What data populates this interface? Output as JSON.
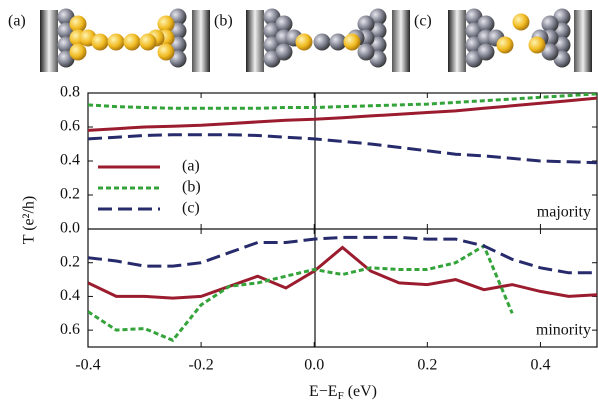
{
  "panels": [
    "(a)",
    "(b)",
    "(c)"
  ],
  "chart_data": [
    {
      "type": "line",
      "ylabel": "T (e²/h)",
      "annotation": "majority",
      "legend": "left",
      "x": [
        -0.4,
        -0.35,
        -0.3,
        -0.25,
        -0.2,
        -0.15,
        -0.1,
        -0.05,
        0,
        0.05,
        0.1,
        0.15,
        0.2,
        0.25,
        0.3,
        0.35,
        0.4,
        0.45,
        0.5
      ],
      "xlim": [
        -0.4,
        0.5
      ],
      "ylim": [
        0,
        0.8
      ],
      "yticks": [
        {
          "value": 0,
          "label": "0.0"
        },
        0.2,
        0.4,
        0.6,
        0.8
      ],
      "series": [
        {
          "name": "(a)",
          "color": "#9b1c2e",
          "linestyle": "solid",
          "values": [
            0.58,
            0.59,
            0.6,
            0.605,
            0.61,
            0.62,
            0.63,
            0.64,
            0.645,
            0.655,
            0.665,
            0.675,
            0.685,
            0.695,
            0.71,
            0.725,
            0.74,
            0.755,
            0.77
          ]
        },
        {
          "name": "(b)",
          "color": "#33a33a",
          "linestyle": "dotted",
          "values": [
            0.73,
            0.72,
            0.715,
            0.71,
            0.71,
            0.71,
            0.71,
            0.715,
            0.715,
            0.72,
            0.725,
            0.73,
            0.735,
            0.745,
            0.755,
            0.765,
            0.775,
            0.785,
            0.795
          ]
        },
        {
          "name": "(c)",
          "color": "#272b6b",
          "linestyle": "dashed",
          "values": [
            0.53,
            0.54,
            0.55,
            0.555,
            0.555,
            0.555,
            0.55,
            0.54,
            0.53,
            0.515,
            0.5,
            0.48,
            0.46,
            0.44,
            0.43,
            0.415,
            0.4,
            0.395,
            0.39
          ]
        }
      ]
    },
    {
      "type": "line",
      "annotation": "minority",
      "xlabel": "E−E",
      "xlabel_sub": "F",
      "xlabel_unit": "(eV)",
      "x": [
        -0.4,
        -0.35,
        -0.3,
        -0.25,
        -0.2,
        -0.15,
        -0.1,
        -0.05,
        0,
        0.05,
        0.1,
        0.15,
        0.2,
        0.25,
        0.3,
        0.35,
        0.4,
        0.45,
        0.5
      ],
      "xlim": [
        -0.4,
        0.5
      ],
      "ylim": [
        0.7,
        0
      ],
      "xticks": [
        -0.4,
        -0.2,
        {
          "value": 0,
          "label": "0.0"
        },
        0.2,
        0.4
      ],
      "yticks": [
        0.2,
        0.4,
        0.6
      ],
      "series": [
        {
          "color": "#9b1c2e",
          "linestyle": "solid",
          "values": [
            0.32,
            0.4,
            0.4,
            0.41,
            0.4,
            0.34,
            0.28,
            0.35,
            0.25,
            0.11,
            0.25,
            0.32,
            0.33,
            0.3,
            0.36,
            0.33,
            0.37,
            0.4,
            0.39
          ]
        },
        {
          "color": "#33a33a",
          "linestyle": "dotted",
          "values": [
            0.49,
            0.6,
            0.59,
            0.66,
            0.45,
            0.34,
            0.32,
            0.28,
            0.24,
            0.27,
            0.23,
            0.24,
            0.24,
            0.2,
            0.1,
            0.5,
            null,
            null,
            null
          ]
        },
        {
          "color": "#272b6b",
          "linestyle": "dashed",
          "values": [
            0.17,
            0.19,
            0.22,
            0.22,
            0.2,
            0.14,
            0.08,
            0.08,
            0.06,
            0.05,
            0.05,
            0.05,
            0.06,
            0.06,
            0.1,
            0.18,
            0.23,
            0.26,
            0.26
          ]
        }
      ]
    }
  ]
}
